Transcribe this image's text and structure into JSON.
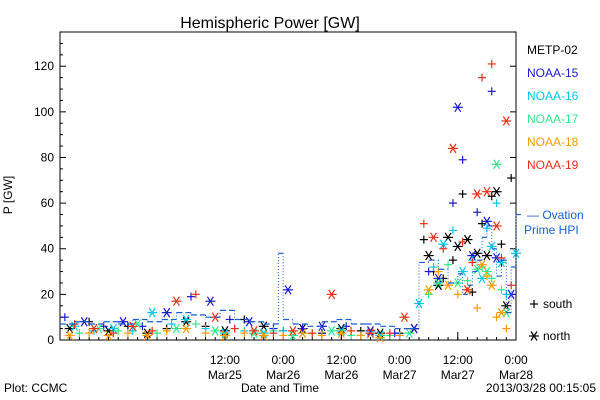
{
  "chart_data": {
    "type": "scatter",
    "title": "Hemispheric Power [GW]",
    "xlabel": "Date and Time",
    "ylabel": "P [GW]",
    "ylim": [
      0,
      135
    ],
    "yticks": [
      0,
      20,
      40,
      60,
      80,
      100,
      120
    ],
    "x_unit": "hours since Mar24 00:00",
    "xlim": [
      2,
      96
    ],
    "xticks": [
      {
        "x": 36,
        "time": "12:00",
        "date": "Mar25"
      },
      {
        "x": 48,
        "time": "0:00",
        "date": "Mar26"
      },
      {
        "x": 60,
        "time": "12:00",
        "date": "Mar26"
      },
      {
        "x": 72,
        "time": "0:00",
        "date": "Mar27"
      },
      {
        "x": 84,
        "time": "12:00",
        "date": "Mar27"
      },
      {
        "x": 96,
        "time": "0:00",
        "date": "Mar28"
      }
    ],
    "series": [
      {
        "name": "METP-02",
        "color": "#000000",
        "points": [
          [
            4,
            5
          ],
          [
            8,
            8
          ],
          [
            12,
            4
          ],
          [
            16,
            6
          ],
          [
            20,
            3
          ],
          [
            24,
            5
          ],
          [
            28,
            8
          ],
          [
            32,
            6
          ],
          [
            36,
            4
          ],
          [
            40,
            9
          ],
          [
            44,
            6
          ],
          [
            48,
            4
          ],
          [
            52,
            5
          ],
          [
            56,
            3
          ],
          [
            60,
            5
          ],
          [
            64,
            4
          ],
          [
            68,
            3
          ],
          [
            72,
            3
          ],
          [
            75,
            5
          ],
          [
            77,
            44
          ],
          [
            78,
            37
          ],
          [
            79,
            30
          ],
          [
            80,
            24
          ],
          [
            81,
            27
          ],
          [
            82,
            45
          ],
          [
            83,
            35
          ],
          [
            84,
            41
          ],
          [
            85,
            64
          ],
          [
            86,
            44
          ],
          [
            87,
            21
          ],
          [
            88,
            38
          ],
          [
            89,
            51
          ],
          [
            90,
            37
          ],
          [
            91,
            63
          ],
          [
            92,
            65
          ],
          [
            93,
            42
          ],
          [
            94,
            15
          ],
          [
            95,
            71
          ]
        ]
      },
      {
        "name": "NOAA-15",
        "color": "#1a1acc",
        "points": [
          [
            3,
            10
          ],
          [
            7,
            8
          ],
          [
            11,
            6
          ],
          [
            15,
            8
          ],
          [
            19,
            6
          ],
          [
            24,
            12
          ],
          [
            29,
            19
          ],
          [
            33,
            17
          ],
          [
            37,
            9
          ],
          [
            41,
            8
          ],
          [
            46,
            5
          ],
          [
            49,
            22
          ],
          [
            52,
            5
          ],
          [
            56,
            6
          ],
          [
            61,
            6
          ],
          [
            66,
            4
          ],
          [
            71,
            3
          ],
          [
            75,
            5
          ],
          [
            78,
            30
          ],
          [
            80,
            27
          ],
          [
            83,
            60
          ],
          [
            84,
            102
          ],
          [
            85,
            79
          ],
          [
            87,
            37
          ],
          [
            88,
            56
          ],
          [
            90,
            52
          ],
          [
            91,
            109
          ],
          [
            92,
            36
          ],
          [
            93,
            34
          ],
          [
            95,
            20
          ]
        ]
      },
      {
        "name": "NOAA-16",
        "color": "#00c8e6",
        "points": [
          [
            5,
            6
          ],
          [
            9,
            4
          ],
          [
            13,
            5
          ],
          [
            17,
            4
          ],
          [
            21,
            12
          ],
          [
            25,
            7
          ],
          [
            28,
            9
          ],
          [
            32,
            5
          ],
          [
            36,
            3
          ],
          [
            40,
            4
          ],
          [
            44,
            3
          ],
          [
            48,
            4
          ],
          [
            52,
            3
          ],
          [
            56,
            2
          ],
          [
            60,
            4
          ],
          [
            64,
            2
          ],
          [
            68,
            2
          ],
          [
            72,
            2
          ],
          [
            76,
            16
          ],
          [
            79,
            32
          ],
          [
            81,
            42
          ],
          [
            83,
            48
          ],
          [
            85,
            30
          ],
          [
            87,
            35
          ],
          [
            89,
            27
          ],
          [
            90,
            49
          ],
          [
            91,
            41
          ],
          [
            92,
            60
          ],
          [
            93,
            34
          ],
          [
            94,
            20
          ],
          [
            96,
            38
          ]
        ]
      },
      {
        "name": "NOAA-17",
        "color": "#33e68c",
        "points": [
          [
            6,
            3
          ],
          [
            10,
            5
          ],
          [
            14,
            4
          ],
          [
            18,
            7
          ],
          [
            22,
            3
          ],
          [
            26,
            5
          ],
          [
            30,
            7
          ],
          [
            34,
            4
          ],
          [
            38,
            5
          ],
          [
            42,
            3
          ],
          [
            46,
            4
          ],
          [
            50,
            2
          ],
          [
            54,
            3
          ],
          [
            58,
            4
          ],
          [
            62,
            2
          ],
          [
            66,
            3
          ],
          [
            70,
            2
          ],
          [
            74,
            3
          ],
          [
            78,
            20
          ],
          [
            80,
            25
          ],
          [
            82,
            33
          ],
          [
            84,
            25
          ],
          [
            86,
            26
          ],
          [
            88,
            31
          ],
          [
            89,
            32
          ],
          [
            90,
            30
          ],
          [
            91,
            27
          ],
          [
            92,
            77
          ],
          [
            93,
            22
          ],
          [
            94,
            12
          ]
        ]
      },
      {
        "name": "NOAA-18",
        "color": "#ff9900",
        "points": [
          [
            4,
            2
          ],
          [
            8,
            3
          ],
          [
            12,
            2
          ],
          [
            16,
            3
          ],
          [
            20,
            2
          ],
          [
            24,
            4
          ],
          [
            28,
            5
          ],
          [
            32,
            3
          ],
          [
            36,
            2
          ],
          [
            40,
            3
          ],
          [
            44,
            2
          ],
          [
            48,
            2
          ],
          [
            52,
            3
          ],
          [
            56,
            2
          ],
          [
            60,
            3
          ],
          [
            64,
            2
          ],
          [
            68,
            1
          ],
          [
            72,
            2
          ],
          [
            78,
            22
          ],
          [
            80,
            30
          ],
          [
            82,
            24
          ],
          [
            84,
            20
          ],
          [
            86,
            22
          ],
          [
            88,
            14
          ],
          [
            89,
            33
          ],
          [
            90,
            28
          ],
          [
            91,
            24
          ],
          [
            92,
            10
          ],
          [
            93,
            12
          ],
          [
            94,
            5
          ]
        ]
      },
      {
        "name": "NOAA-19",
        "color": "#e63219",
        "points": [
          [
            5,
            7
          ],
          [
            9,
            5
          ],
          [
            13,
            3
          ],
          [
            17,
            6
          ],
          [
            21,
            4
          ],
          [
            26,
            17
          ],
          [
            30,
            20
          ],
          [
            34,
            10
          ],
          [
            38,
            5
          ],
          [
            42,
            4
          ],
          [
            46,
            3
          ],
          [
            50,
            4
          ],
          [
            54,
            3
          ],
          [
            58,
            20
          ],
          [
            62,
            4
          ],
          [
            66,
            3
          ],
          [
            70,
            3
          ],
          [
            73,
            10
          ],
          [
            77,
            51
          ],
          [
            79,
            45
          ],
          [
            81,
            40
          ],
          [
            83,
            84
          ],
          [
            85,
            43
          ],
          [
            86,
            22
          ],
          [
            87,
            34
          ],
          [
            88,
            64
          ],
          [
            89,
            115
          ],
          [
            90,
            65
          ],
          [
            91,
            121
          ],
          [
            92,
            50
          ],
          [
            93,
            36
          ],
          [
            94,
            96
          ],
          [
            95,
            24
          ]
        ]
      }
    ],
    "south_north_note": [
      {
        "marker": "+",
        "label": "south"
      },
      {
        "marker": "*",
        "label": "north"
      }
    ],
    "ovation": {
      "label_lines": [
        "— Ovation",
        "Prime HPI"
      ],
      "color": "#1a5fcc",
      "steps": [
        [
          2,
          7
        ],
        [
          5,
          8
        ],
        [
          8,
          7
        ],
        [
          11,
          8
        ],
        [
          14,
          7
        ],
        [
          17,
          9
        ],
        [
          20,
          8
        ],
        [
          23,
          9
        ],
        [
          26,
          12
        ],
        [
          29,
          11
        ],
        [
          32,
          10
        ],
        [
          35,
          13
        ],
        [
          38,
          9
        ],
        [
          41,
          8
        ],
        [
          44,
          7
        ],
        [
          47,
          38
        ],
        [
          48,
          9
        ],
        [
          50,
          7
        ],
        [
          53,
          6
        ],
        [
          56,
          8
        ],
        [
          59,
          9
        ],
        [
          62,
          7
        ],
        [
          65,
          7
        ],
        [
          68,
          6
        ],
        [
          71,
          5
        ],
        [
          74,
          5
        ],
        [
          76,
          34
        ],
        [
          78,
          35
        ],
        [
          80,
          31
        ],
        [
          82,
          25
        ],
        [
          84,
          29
        ],
        [
          85,
          20
        ],
        [
          86,
          24
        ],
        [
          87,
          30
        ],
        [
          88,
          35
        ],
        [
          89,
          45
        ],
        [
          90,
          50
        ],
        [
          91,
          40
        ],
        [
          92,
          28
        ],
        [
          93,
          35
        ],
        [
          94,
          12
        ],
        [
          95,
          32
        ],
        [
          96,
          55
        ]
      ]
    },
    "legend_position": "right",
    "grid": false
  },
  "footer": {
    "left": "Plot: CCMC",
    "right": "2013/03/28 00:15:05"
  },
  "markers": {
    "south_symbol": "+",
    "north_symbol": "*"
  }
}
